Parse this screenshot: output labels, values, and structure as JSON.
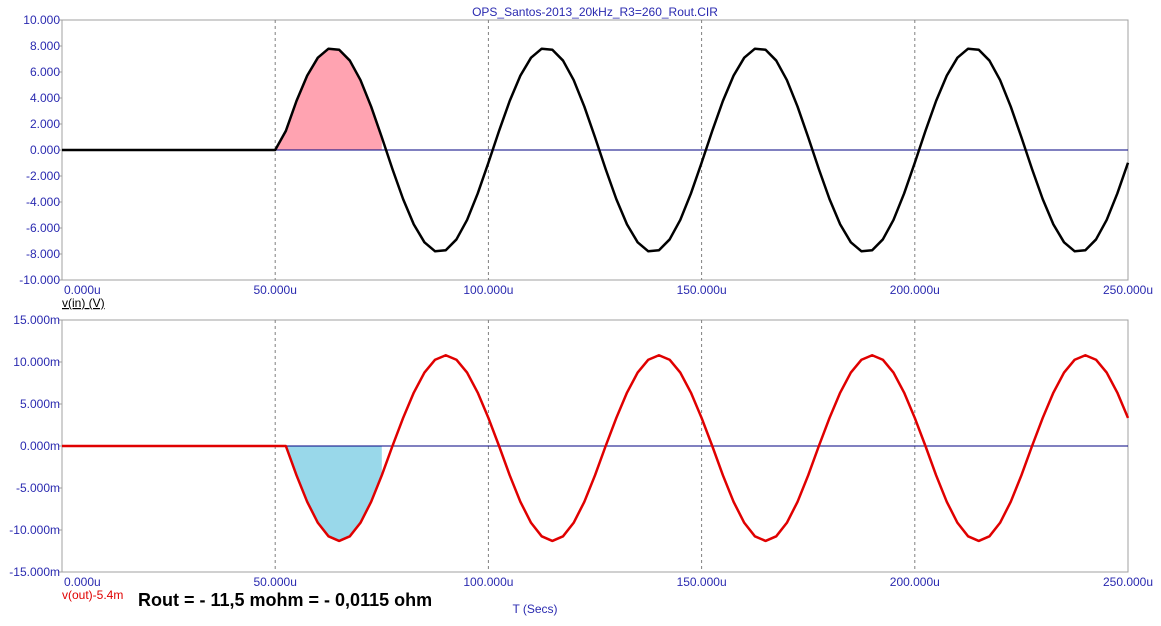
{
  "chart_data": [
    {
      "type": "line",
      "title": "OPS_Santos-2013_20kHz_R3=260_Rout.CIR",
      "ylabel": "v(in) (V)",
      "x": [
        0,
        2.5,
        5,
        7.5,
        10,
        12.5,
        15,
        17.5,
        20,
        22.5,
        25,
        27.5,
        30,
        32.5,
        35,
        37.5,
        40,
        42.5,
        45,
        47.5,
        50,
        52.5,
        55,
        57.5,
        60,
        62.5,
        65,
        67.5,
        70,
        72.5,
        75,
        77.5,
        80,
        82.5,
        85,
        87.5,
        90,
        92.5,
        95,
        97.5,
        100,
        102.5,
        105,
        107.5,
        110,
        112.5,
        115,
        117.5,
        120,
        122.5,
        125,
        127.5,
        130,
        132.5,
        135,
        137.5,
        140,
        142.5,
        145,
        147.5,
        150,
        152.5,
        155,
        157.5,
        160,
        162.5,
        165,
        167.5,
        170,
        172.5,
        175,
        177.5,
        180,
        182.5,
        185,
        187.5,
        190,
        192.5,
        195,
        197.5,
        200,
        202.5,
        205,
        207.5,
        210,
        212.5,
        215,
        217.5,
        220,
        222.5,
        225,
        227.5,
        230,
        232.5,
        235,
        237.5,
        240,
        242.5,
        245,
        247.5,
        250
      ],
      "series": [
        {
          "name": "v(in)",
          "color": "#000000",
          "values": [
            0,
            0,
            0,
            0,
            0,
            0,
            0,
            0,
            0,
            0,
            0,
            0,
            0,
            0,
            0,
            0,
            0,
            0,
            0,
            0,
            0,
            1.47,
            3.78,
            5.72,
            7.1,
            7.79,
            7.71,
            6.88,
            5.38,
            3.34,
            0.98,
            -1.47,
            -3.78,
            -5.72,
            -7.1,
            -7.79,
            -7.71,
            -6.88,
            -5.38,
            -3.34,
            -0.98,
            1.47,
            3.78,
            5.72,
            7.1,
            7.79,
            7.71,
            6.88,
            5.38,
            3.34,
            0.98,
            -1.47,
            -3.78,
            -5.72,
            -7.1,
            -7.79,
            -7.71,
            -6.88,
            -5.38,
            -3.34,
            -0.98,
            1.47,
            3.78,
            5.72,
            7.1,
            7.79,
            7.71,
            6.88,
            5.38,
            3.34,
            0.98,
            -1.47,
            -3.78,
            -5.72,
            -7.1,
            -7.79,
            -7.71,
            -6.88,
            -5.38,
            -3.34,
            -0.98,
            1.47,
            3.78,
            5.72,
            7.1,
            7.79,
            7.71,
            6.88,
            5.38,
            3.34,
            0.98,
            -1.47,
            -3.78,
            -5.72,
            -7.1,
            -7.79,
            -7.71,
            -6.88,
            -5.38,
            -3.34,
            -0.98
          ]
        }
      ],
      "shade_color": "#ffa3b1",
      "xlim": [
        0,
        250
      ],
      "xticks": [
        {
          "value": 0,
          "label": "0.000u"
        },
        {
          "value": 50,
          "label": "50.000u"
        },
        {
          "value": 100,
          "label": "100.000u"
        },
        {
          "value": 150,
          "label": "150.000u"
        },
        {
          "value": 200,
          "label": "200.000u"
        },
        {
          "value": 250,
          "label": "250.000u"
        }
      ],
      "ylim": [
        -10,
        10
      ],
      "yticks": [
        {
          "value": 10,
          "label": "10.000"
        },
        {
          "value": 8,
          "label": "8.000"
        },
        {
          "value": 6,
          "label": "6.000"
        },
        {
          "value": 4,
          "label": "4.000"
        },
        {
          "value": 2,
          "label": "2.000"
        },
        {
          "value": 0,
          "label": "0.000"
        },
        {
          "value": -2,
          "label": "-2.000"
        },
        {
          "value": -4,
          "label": "-4.000"
        },
        {
          "value": -6,
          "label": "-6.000"
        },
        {
          "value": -8,
          "label": "-8.000"
        },
        {
          "value": -10,
          "label": "-10.000"
        }
      ],
      "grid": true
    },
    {
      "type": "line",
      "ylabel": "v(out)-5.4m",
      "xlabel": "T (Secs)",
      "annotation": "Rout = - 11,5 mohm = - 0,0115 ohm",
      "x": [
        0,
        2.5,
        5,
        7.5,
        10,
        12.5,
        15,
        17.5,
        20,
        22.5,
        25,
        27.5,
        30,
        32.5,
        35,
        37.5,
        40,
        42.5,
        45,
        47.5,
        50,
        52.5,
        55,
        57.5,
        60,
        62.5,
        65,
        67.5,
        70,
        72.5,
        75,
        77.5,
        80,
        82.5,
        85,
        87.5,
        90,
        92.5,
        95,
        97.5,
        100,
        102.5,
        105,
        107.5,
        110,
        112.5,
        115,
        117.5,
        120,
        122.5,
        125,
        127.5,
        130,
        132.5,
        135,
        137.5,
        140,
        142.5,
        145,
        147.5,
        150,
        152.5,
        155,
        157.5,
        160,
        162.5,
        165,
        167.5,
        170,
        172.5,
        175,
        177.5,
        180,
        182.5,
        185,
        187.5,
        190,
        192.5,
        195,
        197.5,
        200,
        202.5,
        205,
        207.5,
        210,
        212.5,
        215,
        217.5,
        220,
        222.5,
        225,
        227.5,
        230,
        232.5,
        235,
        237.5,
        240,
        242.5,
        245,
        247.5,
        250
      ],
      "series": [
        {
          "name": "v(out)-5.4m",
          "color": "#e00000",
          "values": [
            0,
            0,
            0,
            0,
            0,
            0,
            0,
            0,
            0,
            0,
            0,
            0,
            0,
            0,
            0,
            0,
            0,
            0,
            0,
            0,
            0,
            0,
            -3.49,
            -6.64,
            -9.14,
            -10.75,
            -11.3,
            -10.75,
            -9.14,
            -6.64,
            -3.49,
            0,
            3.34,
            6.35,
            8.74,
            10.27,
            10.8,
            10.27,
            8.74,
            6.35,
            3.34,
            0,
            -3.49,
            -6.64,
            -9.14,
            -10.75,
            -11.3,
            -10.75,
            -9.14,
            -6.64,
            -3.49,
            0,
            3.34,
            6.35,
            8.74,
            10.27,
            10.8,
            10.27,
            8.74,
            6.35,
            3.34,
            0,
            -3.49,
            -6.64,
            -9.14,
            -10.75,
            -11.3,
            -10.75,
            -9.14,
            -6.64,
            -3.49,
            0,
            3.34,
            6.35,
            8.74,
            10.27,
            10.8,
            10.27,
            8.74,
            6.35,
            3.34,
            0,
            -3.49,
            -6.64,
            -9.14,
            -10.75,
            -11.3,
            -10.75,
            -9.14,
            -6.64,
            -3.49,
            0,
            3.34,
            6.35,
            8.74,
            10.27,
            10.8,
            10.27,
            8.74,
            6.35,
            3.34
          ]
        }
      ],
      "shade_color": "#99d8ea",
      "xlim": [
        0,
        250
      ],
      "xticks": [
        {
          "value": 0,
          "label": "0.000u"
        },
        {
          "value": 50,
          "label": "50.000u"
        },
        {
          "value": 100,
          "label": "100.000u"
        },
        {
          "value": 150,
          "label": "150.000u"
        },
        {
          "value": 200,
          "label": "200.000u"
        },
        {
          "value": 250,
          "label": "250.000u"
        }
      ],
      "ylim": [
        -15,
        15
      ],
      "yticks": [
        {
          "value": 15,
          "label": "15.000m"
        },
        {
          "value": 10,
          "label": "10.000m"
        },
        {
          "value": 5,
          "label": "5.000m"
        },
        {
          "value": 0,
          "label": "0.000m"
        },
        {
          "value": -5,
          "label": "-5.000m"
        },
        {
          "value": -10,
          "label": "-10.000m"
        },
        {
          "value": -15,
          "label": "-15.000m"
        }
      ],
      "grid": true
    }
  ]
}
